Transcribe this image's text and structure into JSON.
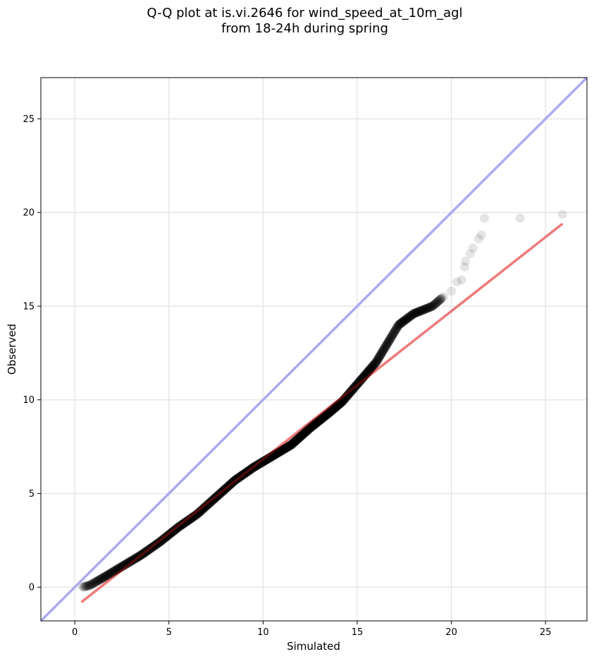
{
  "chart_data": {
    "type": "scatter",
    "title_line1": "Q-Q plot at is.vi.2646 for wind_speed_at_10m_agl",
    "title_line2": "from 18-24h during spring",
    "xlabel": "Simulated",
    "ylabel": "Observed",
    "xlim": [
      -1.8,
      27.2
    ],
    "ylim": [
      -1.8,
      27.2
    ],
    "xticks": [
      0,
      5,
      10,
      15,
      20,
      25
    ],
    "yticks": [
      0,
      5,
      10,
      15,
      20,
      25
    ],
    "grid": true,
    "reference_line": {
      "name": "1:1",
      "color": "#aaaaf0",
      "from": [
        -1.8,
        -1.8
      ],
      "to": [
        27.2,
        27.2
      ]
    },
    "fit_line": {
      "color": "#f4a6a6",
      "from": [
        0.35,
        -0.8
      ],
      "to": [
        25.9,
        19.4
      ]
    },
    "point_color": "#000000",
    "quantile_curve": [
      [
        0.4,
        0.0
      ],
      [
        0.8,
        0.1
      ],
      [
        1.5,
        0.5
      ],
      [
        2.5,
        1.1
      ],
      [
        3.5,
        1.7
      ],
      [
        4.5,
        2.4
      ],
      [
        5.5,
        3.2
      ],
      [
        6.5,
        3.9
      ],
      [
        7.5,
        4.8
      ],
      [
        8.5,
        5.7
      ],
      [
        9.5,
        6.4
      ],
      [
        10.5,
        7.0
      ],
      [
        11.5,
        7.6
      ],
      [
        12.5,
        8.5
      ],
      [
        13.5,
        9.3
      ],
      [
        14.2,
        9.9
      ],
      [
        14.8,
        10.6
      ],
      [
        15.4,
        11.3
      ],
      [
        16.0,
        12.0
      ],
      [
        16.6,
        13.0
      ],
      [
        17.2,
        14.0
      ],
      [
        18.0,
        14.6
      ],
      [
        19.0,
        15.0
      ],
      [
        19.8,
        15.7
      ],
      [
        20.4,
        16.5
      ],
      [
        20.7,
        17.4
      ],
      [
        21.0,
        18.0
      ]
    ],
    "tail_points": [
      [
        19.6,
        15.5
      ],
      [
        20.0,
        15.8
      ],
      [
        20.3,
        16.3
      ],
      [
        20.55,
        16.4
      ],
      [
        20.7,
        17.1
      ],
      [
        20.75,
        17.4
      ],
      [
        21.0,
        17.8
      ],
      [
        21.15,
        18.1
      ],
      [
        21.45,
        18.6
      ],
      [
        21.6,
        18.8
      ],
      [
        21.75,
        19.7
      ],
      [
        23.65,
        19.7
      ],
      [
        25.9,
        19.9
      ]
    ],
    "n_points": 900
  }
}
